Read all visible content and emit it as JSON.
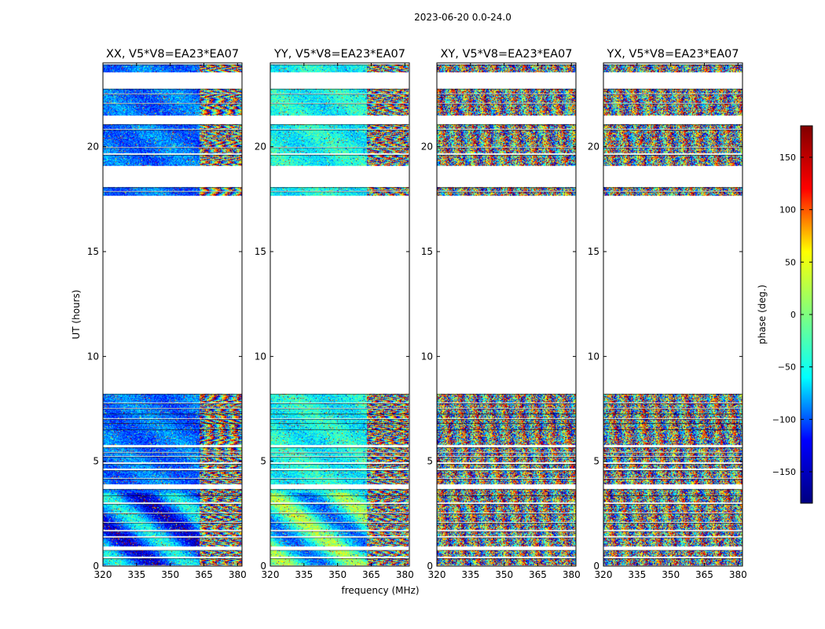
{
  "suptitle": "2023-06-20 0.0-24.0",
  "chart_data": {
    "type": "heatmap",
    "xlabel": "frequency (MHz)",
    "ylabel": "UT (hours)",
    "xlim": [
      320,
      382
    ],
    "ylim": [
      0,
      24
    ],
    "xticks": [
      "320",
      "335",
      "350",
      "365",
      "380"
    ],
    "yticks": [
      "0",
      "5",
      "10",
      "15",
      "20"
    ],
    "colorbar": {
      "label": "phase (deg.)",
      "range": [
        -180,
        180
      ],
      "ticks": [
        "150",
        "100",
        "50",
        "0",
        "−50",
        "−100",
        "−150"
      ],
      "tick_values": [
        150,
        100,
        50,
        0,
        -50,
        -100,
        -150
      ],
      "colormap": "jet",
      "stops": [
        "#000080",
        "#0000ff",
        "#00ffff",
        "#7fff7f",
        "#ffff00",
        "#ff0000",
        "#800000"
      ]
    },
    "panels": [
      {
        "title": "XX, V5*V8=EA23*EA07",
        "pol": "XX",
        "mode": "parallel"
      },
      {
        "title": "YY, V5*V8=EA23*EA07",
        "pol": "YY",
        "mode": "parallel"
      },
      {
        "title": "XY, V5*V8=EA23*EA07",
        "pol": "XY",
        "mode": "cross"
      },
      {
        "title": "YX, V5*V8=EA23*EA07",
        "pol": "YX",
        "mode": "cross"
      }
    ],
    "data_blocks_ut": [
      [
        0.05,
        0.35
      ],
      [
        0.45,
        0.75
      ],
      [
        0.95,
        1.35
      ],
      [
        1.45,
        1.65
      ],
      [
        1.75,
        2.05
      ],
      [
        2.1,
        2.5
      ],
      [
        2.55,
        2.95
      ],
      [
        3.05,
        3.35
      ],
      [
        3.4,
        3.65
      ],
      [
        3.9,
        4.15
      ],
      [
        4.2,
        4.55
      ],
      [
        4.65,
        4.85
      ],
      [
        4.95,
        5.2
      ],
      [
        5.25,
        5.4
      ],
      [
        5.45,
        5.65
      ],
      [
        5.8,
        6.5
      ],
      [
        6.55,
        6.8
      ],
      [
        6.85,
        7.0
      ],
      [
        7.05,
        7.25
      ],
      [
        7.3,
        7.5
      ],
      [
        7.55,
        7.75
      ],
      [
        7.8,
        8.2
      ],
      [
        17.7,
        17.85
      ],
      [
        17.9,
        18.05
      ],
      [
        19.1,
        19.6
      ],
      [
        19.7,
        19.95
      ],
      [
        20.0,
        20.8
      ],
      [
        20.85,
        21.05
      ],
      [
        21.5,
        22.05
      ],
      [
        22.1,
        22.5
      ],
      [
        22.55,
        22.75
      ],
      [
        23.55,
        23.9
      ]
    ]
  }
}
